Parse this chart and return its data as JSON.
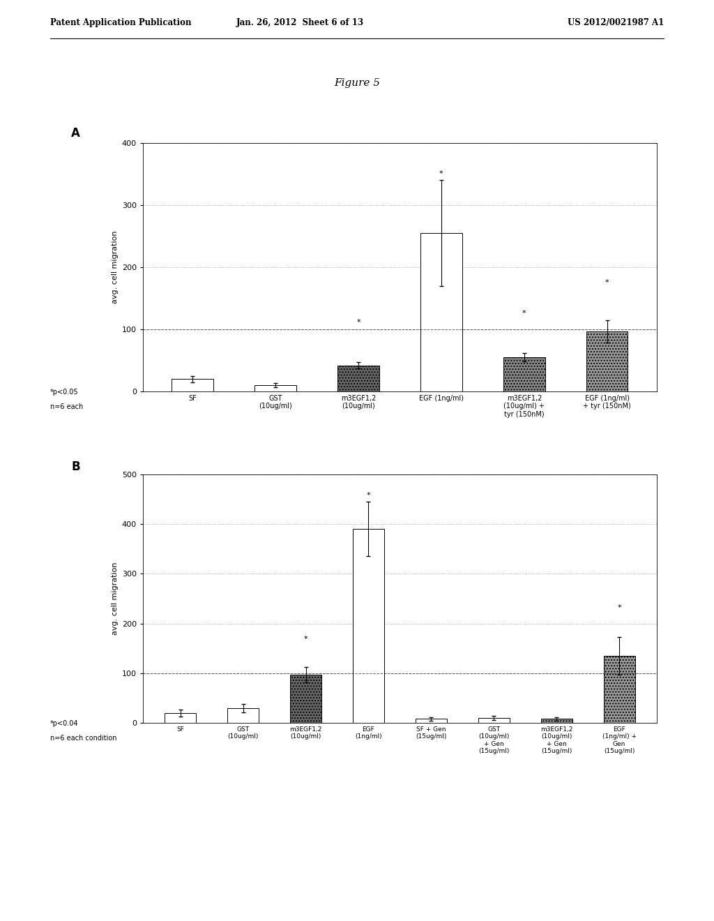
{
  "header_left": "Patent Application Publication",
  "header_mid": "Jan. 26, 2012  Sheet 6 of 13",
  "header_right": "US 2012/0021987 A1",
  "figure_title": "Figure 5",
  "panel_A": {
    "label": "A",
    "categories": [
      "SF",
      "GST\n(10ug/ml)",
      "m3EGF1,2\n(10ug/ml)",
      "EGF (1ng/ml)",
      "m3EGF1,2\n(10ug/ml) +\ntyr (150nM)",
      "EGF (1ng/ml)\n+ tyr (150nM)"
    ],
    "values": [
      20,
      10,
      42,
      255,
      55,
      97
    ],
    "errors": [
      5,
      3,
      5,
      85,
      7,
      18
    ],
    "star_annotations": [
      {
        "idx": 2,
        "y": 105,
        "text": "*"
      },
      {
        "idx": 3,
        "y": 345,
        "text": "*"
      },
      {
        "idx": 4,
        "y": 120,
        "text": "*"
      },
      {
        "idx": 5,
        "y": 170,
        "text": "*"
      }
    ],
    "bar_colors": [
      "white",
      "white",
      "#666666",
      "white",
      "#888888",
      "#999999"
    ],
    "bar_hatches": [
      "",
      "",
      "....",
      "",
      "....",
      "...."
    ],
    "bar_edgecolors": [
      "black",
      "black",
      "black",
      "black",
      "black",
      "black"
    ],
    "ylabel": "avg. cell migration",
    "ylim": [
      0,
      400
    ],
    "yticks": [
      0,
      100,
      200,
      300,
      400
    ],
    "footnote_line1": "*p<0.05",
    "footnote_line2": "n=6 each",
    "dashed_line_y": 100
  },
  "panel_B": {
    "label": "B",
    "categories": [
      "SF",
      "GST\n(10ug/ml)",
      "m3EGF1,2\n(10ug/ml)",
      "EGF\n(1ng/ml)",
      "SF + Gen\n(15ug/ml)",
      "GST\n(10ug/ml)\n+ Gen\n(15ug/ml)",
      "m3EGF1,2\n(10ug/ml)\n+ Gen\n(15ug/ml)",
      "EGF\n(1ng/ml) +\nGen\n(15ug/ml)"
    ],
    "values": [
      20,
      30,
      97,
      390,
      8,
      10,
      8,
      135
    ],
    "errors": [
      7,
      8,
      15,
      55,
      3,
      4,
      3,
      38
    ],
    "star_annotations": [
      {
        "idx": 2,
        "y": 162,
        "text": "*"
      },
      {
        "idx": 3,
        "y": 450,
        "text": "*"
      },
      {
        "idx": 7,
        "y": 225,
        "text": "*"
      }
    ],
    "bar_colors": [
      "white",
      "white",
      "#666666",
      "white",
      "white",
      "white",
      "#888888",
      "#999999"
    ],
    "bar_hatches": [
      "",
      "",
      "....",
      "",
      "",
      "",
      "....",
      "...."
    ],
    "bar_edgecolors": [
      "black",
      "black",
      "black",
      "black",
      "black",
      "black",
      "black",
      "black"
    ],
    "ylabel": "avg. cell migration",
    "ylim": [
      0,
      500
    ],
    "yticks": [
      0,
      100,
      200,
      300,
      400,
      500
    ],
    "footnote_line1": "*p<0.04",
    "footnote_line2": "n=6 each condition",
    "dashed_line_y": 100
  },
  "background_color": "#ffffff"
}
